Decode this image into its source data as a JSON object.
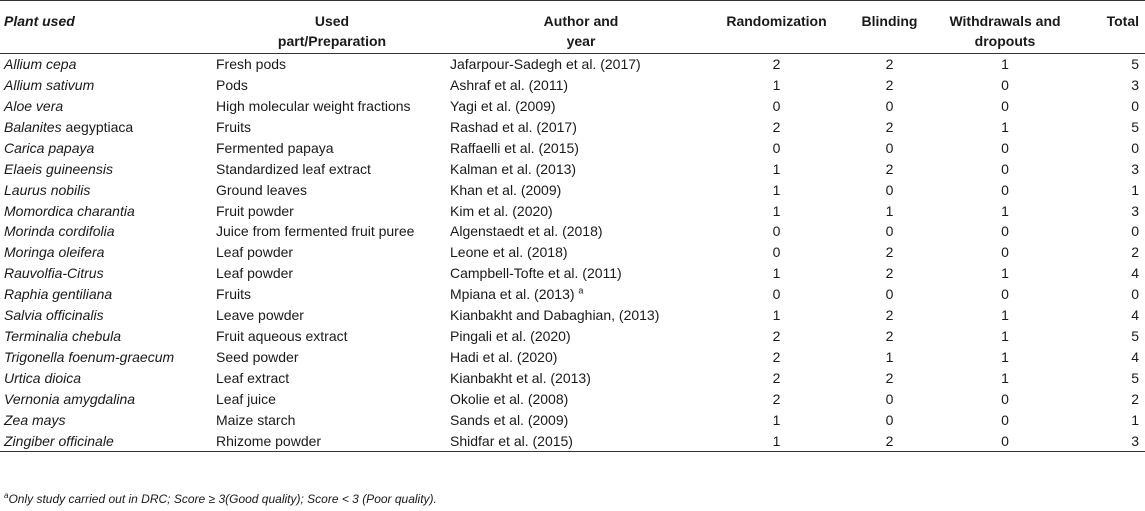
{
  "headers": {
    "plant": "Plant used",
    "part_line1": "Used",
    "part_line2": "part/Preparation",
    "author_line1": "Author and",
    "author_line2": "year",
    "randomization": "Randomization",
    "blinding": "Blinding",
    "withdrawals_line1": "Withdrawals and",
    "withdrawals_line2": "dropouts",
    "total": "Total"
  },
  "rows": [
    {
      "genus": "Allium cepa",
      "species": "",
      "part": "Fresh pods",
      "author": "Jafarpour-Sadegh et al. (2017)",
      "sup": "",
      "randomization": "2",
      "blinding": "2",
      "withdrawals": "1",
      "total": "5"
    },
    {
      "genus": "Allium sativum",
      "species": "",
      "part": "Pods",
      "author": "Ashraf et al. (2011)",
      "sup": "",
      "randomization": "1",
      "blinding": "2",
      "withdrawals": "0",
      "total": "3"
    },
    {
      "genus": "Aloe vera",
      "species": "",
      "part": "High molecular weight fractions",
      "author": "Yagi et al. (2009)",
      "sup": "",
      "randomization": "0",
      "blinding": "0",
      "withdrawals": "0",
      "total": "0"
    },
    {
      "genus": "Balanites",
      "species": " aegyptiaca",
      "part": "Fruits",
      "author": "Rashad et al. (2017)",
      "sup": "",
      "randomization": "2",
      "blinding": "2",
      "withdrawals": "1",
      "total": "5"
    },
    {
      "genus": "Carica papaya",
      "species": "",
      "part": "Fermented papaya",
      "author": "Raffaelli et al. (2015)",
      "sup": "",
      "randomization": "0",
      "blinding": "0",
      "withdrawals": "0",
      "total": "0"
    },
    {
      "genus": "Elaeis guineensis",
      "species": "",
      "part": "Standardized leaf extract",
      "author": "Kalman et al. (2013)",
      "sup": "",
      "randomization": "1",
      "blinding": "2",
      "withdrawals": "0",
      "total": "3"
    },
    {
      "genus": "Laurus nobilis",
      "species": "",
      "part": "Ground leaves",
      "author": "Khan et al. (2009)",
      "sup": "",
      "randomization": "1",
      "blinding": "0",
      "withdrawals": "0",
      "total": "1"
    },
    {
      "genus": "Momordica charantia",
      "species": "",
      "part": "Fruit powder",
      "author": "Kim et al. (2020)",
      "sup": "",
      "randomization": "1",
      "blinding": "1",
      "withdrawals": "1",
      "total": "3"
    },
    {
      "genus": "Morinda cordifolia",
      "species": "",
      "part": "Juice from fermented fruit puree",
      "author": "Algenstaedt et al. (2018)",
      "sup": "",
      "randomization": "0",
      "blinding": "0",
      "withdrawals": "0",
      "total": "0"
    },
    {
      "genus": "Moringa oleifera",
      "species": "",
      "part": "Leaf powder",
      "author": "Leone et al. (2018)",
      "sup": "",
      "randomization": "0",
      "blinding": "2",
      "withdrawals": "0",
      "total": "2"
    },
    {
      "genus": "Rauvolfia-Citrus",
      "species": "",
      "part": "Leaf powder",
      "author": "Campbell-Tofte et al. (2011)",
      "sup": "",
      "randomization": "1",
      "blinding": "2",
      "withdrawals": "1",
      "total": "4"
    },
    {
      "genus": "Raphia gentiliana",
      "species": "",
      "part": "Fruits",
      "author": "Mpiana et al. (2013)",
      "sup": "a",
      "randomization": "0",
      "blinding": "0",
      "withdrawals": "0",
      "total": "0"
    },
    {
      "genus": "Salvia officinalis",
      "species": "",
      "part": "Leave powder",
      "author": "Kianbakht and Dabaghian, (2013)",
      "sup": "",
      "randomization": "1",
      "blinding": "2",
      "withdrawals": "1",
      "total": "4"
    },
    {
      "genus": "Terminalia chebula",
      "species": "",
      "part": "Fruit aqueous extract",
      "author": "Pingali et al. (2020)",
      "sup": "",
      "randomization": "2",
      "blinding": "2",
      "withdrawals": "1",
      "total": "5"
    },
    {
      "genus": "Trigonella foenum-graecum",
      "species": "",
      "part": "Seed powder",
      "author": "Hadi et al. (2020)",
      "sup": "",
      "randomization": "2",
      "blinding": "1",
      "withdrawals": "1",
      "total": "4"
    },
    {
      "genus": "Urtica dioica",
      "species": "",
      "part": "Leaf extract",
      "author": "Kianbakht et al. (2013)",
      "sup": "",
      "randomization": "2",
      "blinding": "2",
      "withdrawals": "1",
      "total": "5"
    },
    {
      "genus": "Vernonia amygdalina",
      "species": "",
      "part": "Leaf juice",
      "author": "Okolie et al. (2008)",
      "sup": "",
      "randomization": "2",
      "blinding": "0",
      "withdrawals": "0",
      "total": "2"
    },
    {
      "genus": "Zea mays",
      "species": "",
      "part": "Maize starch",
      "author": "Sands et al. (2009)",
      "sup": "",
      "randomization": "1",
      "blinding": "0",
      "withdrawals": "0",
      "total": "1"
    },
    {
      "genus": "Zingiber officinale",
      "species": "",
      "part": "Rhizome powder",
      "author": "Shidfar et al. (2015)",
      "sup": "",
      "randomization": "1",
      "blinding": "2",
      "withdrawals": "0",
      "total": "3"
    }
  ],
  "footnote": {
    "marker": "a",
    "text": "Only study carried out in DRC; Score ≥ 3(Good quality); Score < 3 (Poor quality)."
  }
}
